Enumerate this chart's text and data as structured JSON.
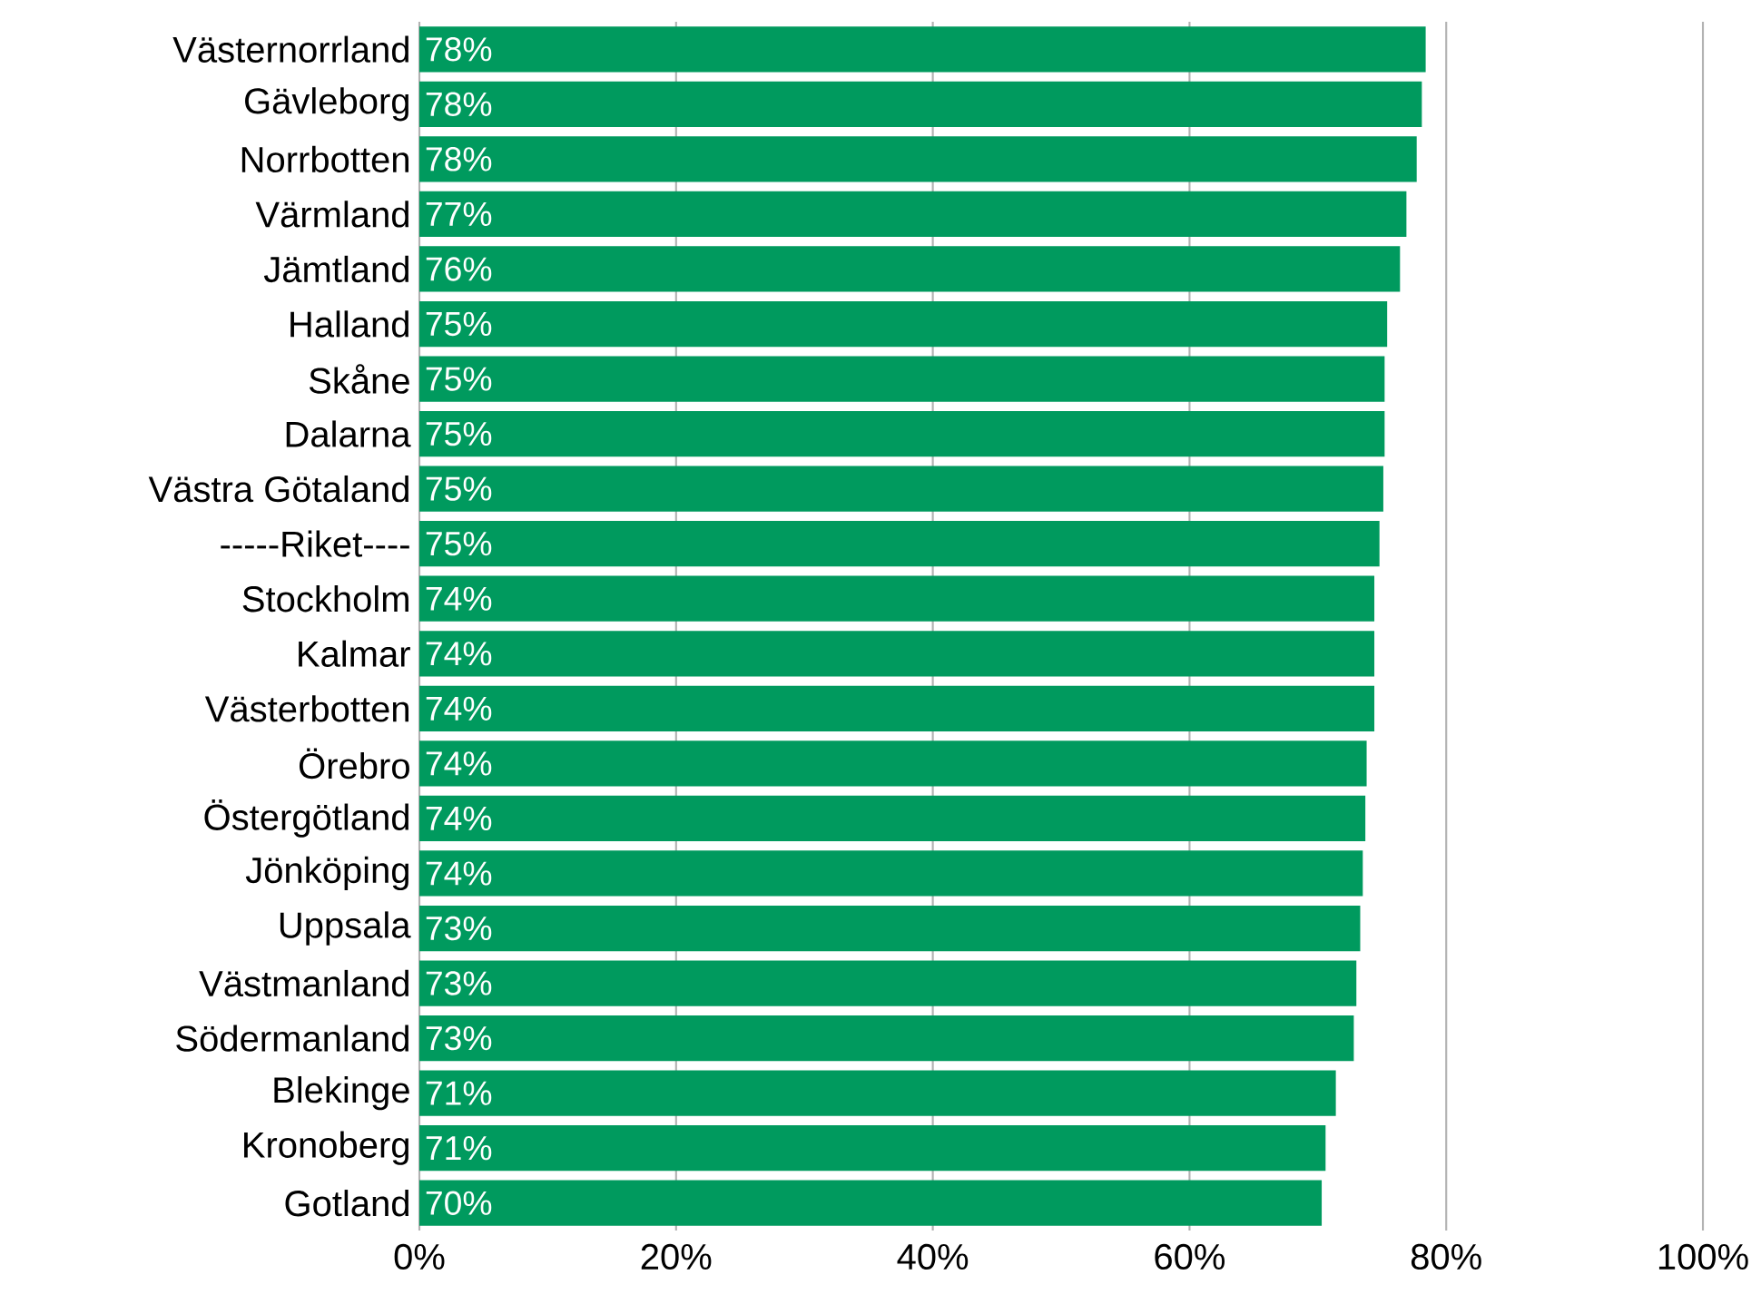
{
  "chart_data": {
    "type": "bar",
    "orientation": "horizontal",
    "categories": [
      "Västernorrland",
      "Gävleborg",
      "Norrbotten",
      "Värmland",
      "Jämtland",
      "Halland",
      "Skåne",
      "Dalarna",
      "Västra Götaland",
      "-----Riket----",
      "Stockholm",
      "Kalmar",
      "Västerbotten",
      "Örebro",
      "Östergötland",
      "Jönköping",
      "Uppsala",
      "Västmanland",
      "Södermanland",
      "Blekinge",
      "Kronoberg",
      "Gotland"
    ],
    "values": [
      78.4,
      78.1,
      77.7,
      76.9,
      76.4,
      75.4,
      75.2,
      75.2,
      75.1,
      74.8,
      74.4,
      74.4,
      74.4,
      73.8,
      73.7,
      73.5,
      73.3,
      73.0,
      72.8,
      71.4,
      70.6,
      70.3
    ],
    "value_labels": [
      "78%",
      "78%",
      "78%",
      "77%",
      "76%",
      "75%",
      "75%",
      "75%",
      "75%",
      "75%",
      "74%",
      "74%",
      "74%",
      "74%",
      "74%",
      "74%",
      "73%",
      "73%",
      "73%",
      "71%",
      "71%",
      "70%"
    ],
    "color": "#009a5e",
    "xlim": [
      0,
      100
    ],
    "xticks": [
      {
        "value": 0,
        "label": "0%"
      },
      {
        "value": 20,
        "label": "20%"
      },
      {
        "value": 40,
        "label": "40%"
      },
      {
        "value": 60,
        "label": "60%"
      },
      {
        "value": 80,
        "label": "80%"
      },
      {
        "value": 100,
        "label": "100%"
      }
    ],
    "grid": "x"
  }
}
